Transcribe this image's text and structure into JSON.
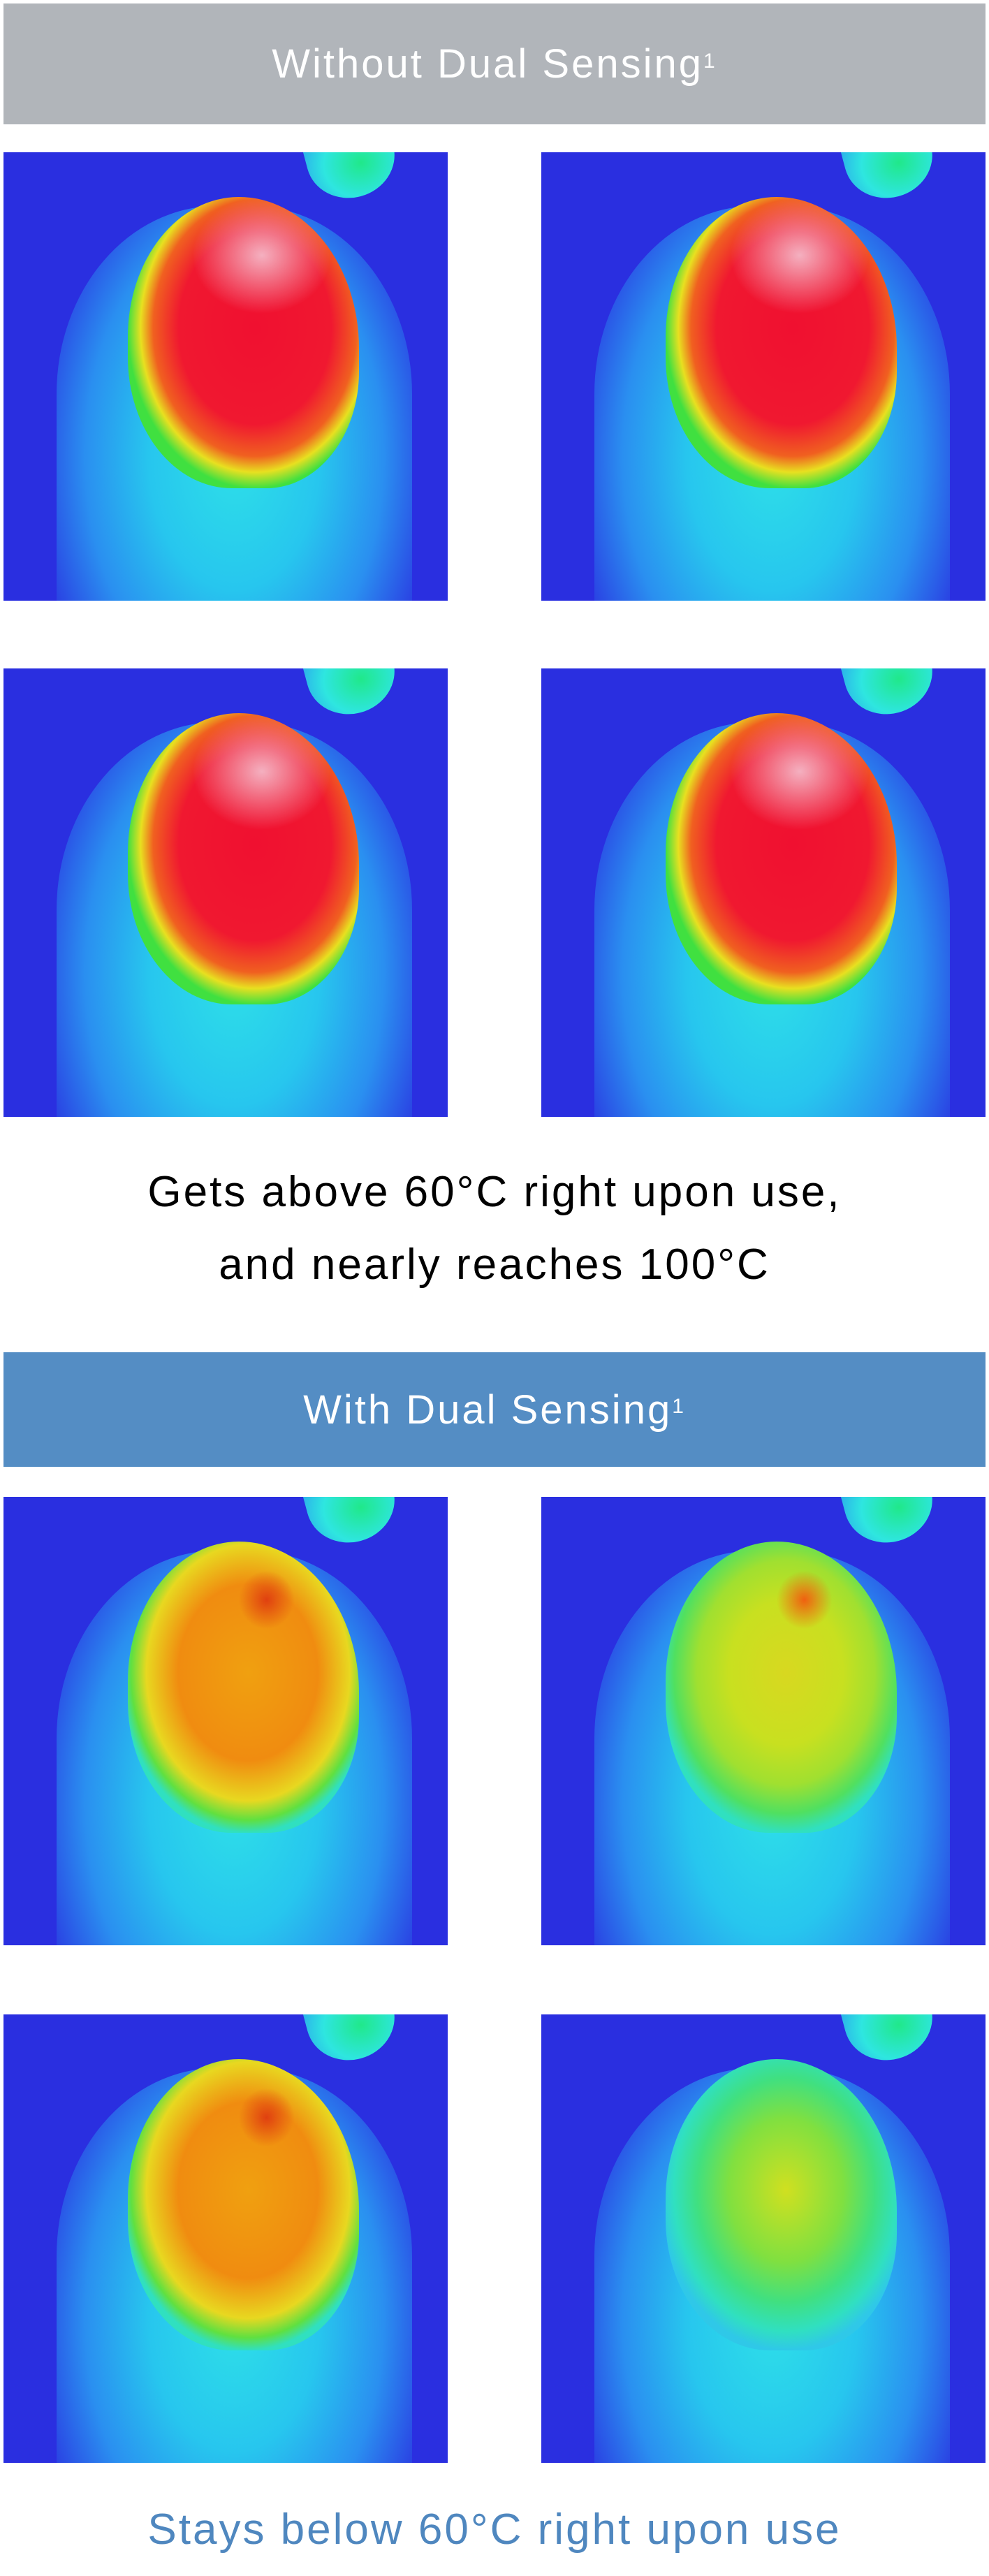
{
  "without_section": {
    "title": "Without Dual Sensing",
    "footnote_marker": "1",
    "bar_color": "#b1b5ba",
    "caption_line1": "Gets above 60°C right upon use,",
    "caption_line2": "and nearly reaches 100°C",
    "caption_color": "#000000",
    "images": [
      "thermal-image",
      "thermal-image",
      "thermal-image",
      "thermal-image"
    ]
  },
  "with_section": {
    "title": "With Dual Sensing",
    "footnote_marker": "1",
    "bar_color": "#548dc4",
    "caption": "Stays below 60°C right upon use",
    "caption_color": "#4f87bf",
    "images": [
      "thermal-image",
      "thermal-image",
      "thermal-image",
      "thermal-image"
    ]
  }
}
